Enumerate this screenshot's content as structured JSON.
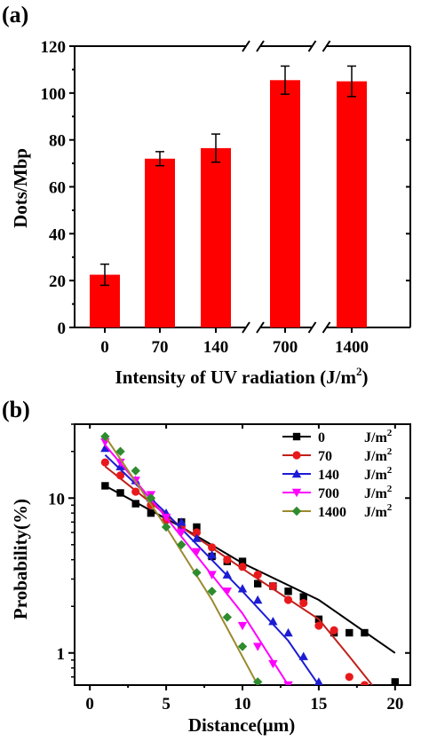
{
  "panel_a": {
    "label": "(a)",
    "xlabel_main": "Intensity of UV radiation (J/m",
    "xlabel_sup": "2",
    "xlabel_end": ")"
  },
  "panel_b": {
    "label": "(b)",
    "xlabel": "Distance(μm)"
  },
  "chart_data": [
    {
      "type": "bar",
      "title": "",
      "xlabel": "Intensity of UV radiation (J/m2)",
      "ylabel": "Dots/Mbp",
      "categories": [
        "0",
        "70",
        "140",
        "700",
        "1400"
      ],
      "values": [
        22.5,
        72,
        76.5,
        105.5,
        105
      ],
      "error": [
        4.5,
        3,
        6,
        6,
        6.5
      ],
      "ylim": [
        0,
        120
      ],
      "yticks": [
        "0",
        "20",
        "40",
        "60",
        "80",
        "100",
        "120"
      ],
      "axis_breaks": "between 140 and 700, and between 700 and 1400",
      "bar_color": "#ff0000",
      "grid": false
    },
    {
      "type": "scatter",
      "title": "",
      "xlabel": "Distance(μm)",
      "ylabel": "Probability(%)",
      "xlim": [
        -1,
        21
      ],
      "ylim": [
        0.62,
        30
      ],
      "yscale": "log",
      "xticks": [
        "0",
        "5",
        "10",
        "15",
        "20"
      ],
      "yticks": [
        "1",
        "10"
      ],
      "legend_placement": "top-right",
      "legend_unit": "J/m",
      "legend_unit_sup": "2",
      "series": [
        {
          "name": "0",
          "color": "#000000",
          "marker": "square",
          "points": [
            [
              1,
              12
            ],
            [
              2,
              10.8
            ],
            [
              3,
              9.2
            ],
            [
              4,
              8
            ],
            [
              5,
              7.5
            ],
            [
              6,
              7
            ],
            [
              7,
              6.5
            ],
            [
              8,
              4.2
            ],
            [
              9,
              3.9
            ],
            [
              10,
              3.9
            ],
            [
              11,
              2.8
            ],
            [
              12,
              2.7
            ],
            [
              13,
              2.5
            ],
            [
              14,
              2.3
            ],
            [
              15,
              1.65
            ],
            [
              16,
              1.35
            ],
            [
              17,
              1.35
            ],
            [
              18,
              1.35
            ],
            [
              20,
              0.65
            ]
          ],
          "fit": [
            [
              1,
              12
            ],
            [
              6,
              6.5
            ],
            [
              10,
              3.8
            ],
            [
              15,
              2.2
            ],
            [
              20,
              1.0
            ]
          ]
        },
        {
          "name": "70",
          "color": "#e8191c",
          "marker": "circle",
          "points": [
            [
              1,
              17
            ],
            [
              2,
              14
            ],
            [
              3,
              11
            ],
            [
              4,
              9
            ],
            [
              5,
              7.2
            ],
            [
              6,
              6.5
            ],
            [
              7,
              6
            ],
            [
              8,
              4.8
            ],
            [
              9,
              4
            ],
            [
              10,
              3.6
            ],
            [
              11,
              3.2
            ],
            [
              12,
              2.7
            ],
            [
              13,
              2.2
            ],
            [
              14,
              2.1
            ],
            [
              15,
              1.5
            ],
            [
              16,
              1.4
            ],
            [
              17,
              0.7
            ],
            [
              18,
              0.62
            ]
          ],
          "fit": [
            [
              1,
              16
            ],
            [
              6,
              6.5
            ],
            [
              10,
              3.5
            ],
            [
              15,
              1.65
            ],
            [
              17,
              0.95
            ],
            [
              18.5,
              0.62
            ]
          ]
        },
        {
          "name": "140",
          "color": "#1c1cd4",
          "marker": "triangle-up",
          "points": [
            [
              1,
              21
            ],
            [
              2,
              16
            ],
            [
              3,
              13
            ],
            [
              4,
              10
            ],
            [
              5,
              8
            ],
            [
              6,
              7
            ],
            [
              7,
              5.5
            ],
            [
              8,
              4.3
            ],
            [
              9,
              3.2
            ],
            [
              10,
              2.6
            ],
            [
              11,
              2.2
            ],
            [
              12,
              1.6
            ],
            [
              13,
              1.35
            ],
            [
              14,
              0.95
            ],
            [
              15,
              0.65
            ]
          ],
          "fit": [
            [
              1,
              19
            ],
            [
              5,
              8
            ],
            [
              10,
              2.5
            ],
            [
              13,
              1.2
            ],
            [
              15,
              0.62
            ]
          ]
        },
        {
          "name": "700",
          "color": "#ff00ff",
          "marker": "triangle-down",
          "points": [
            [
              1,
              23
            ],
            [
              2,
              17
            ],
            [
              3,
              13
            ],
            [
              4,
              10.5
            ],
            [
              5,
              7.5
            ],
            [
              6,
              6
            ],
            [
              7,
              4.5
            ],
            [
              8,
              3.2
            ],
            [
              9,
              2.5
            ],
            [
              10,
              1.5
            ],
            [
              11,
              1.1
            ],
            [
              12,
              0.85
            ],
            [
              13,
              0.62
            ]
          ],
          "fit": [
            [
              1,
              22
            ],
            [
              5,
              7.5
            ],
            [
              10,
              1.8
            ],
            [
              13,
              0.62
            ]
          ]
        },
        {
          "name": "1400",
          "color": "#2e8b2e",
          "marker": "diamond",
          "points": [
            [
              1,
              25
            ],
            [
              2,
              20
            ],
            [
              3,
              15
            ],
            [
              4,
              10
            ],
            [
              5,
              6.5
            ],
            [
              6,
              5
            ],
            [
              7,
              3.3
            ],
            [
              8,
              2.5
            ],
            [
              9,
              1.7
            ],
            [
              10,
              1.1
            ],
            [
              11,
              0.65
            ]
          ],
          "fit": [
            [
              1,
              25
            ],
            [
              5,
              6.5
            ],
            [
              8,
              2.2
            ],
            [
              11,
              0.62
            ]
          ]
        }
      ],
      "line_colors": [
        "#000000",
        "#c0201b",
        "#1c1cd4",
        "#ff00ff",
        "#9b8a2e"
      ]
    }
  ]
}
